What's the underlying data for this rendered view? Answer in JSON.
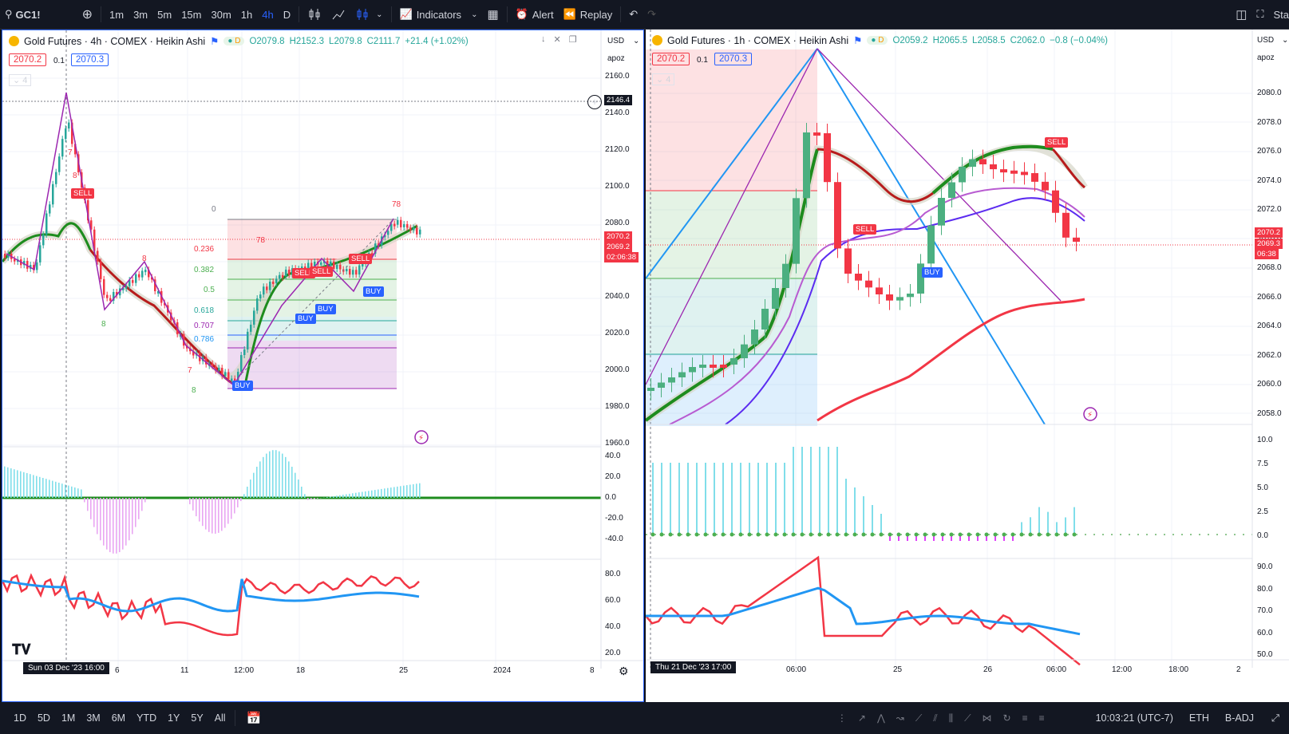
{
  "topbar": {
    "symbol": "GC1!",
    "intervals": [
      "1m",
      "3m",
      "5m",
      "15m",
      "30m",
      "1h",
      "4h",
      "D"
    ],
    "active_interval": "4h",
    "indicators_label": "Indicators",
    "alert_label": "Alert",
    "replay_label": "Replay",
    "right_text": "Sta"
  },
  "left_chart": {
    "title": "Gold Futures · 4h · COMEX · Heikin Ashi",
    "source": "D",
    "ohlc": {
      "o": "O2079.8",
      "h": "H2152.3",
      "l": "L2079.8",
      "c": "C2111.7",
      "chg": "+21.4 (+1.02%)"
    },
    "bid": "2070.2",
    "spread": "0.1",
    "ask": "2070.3",
    "layers": "4",
    "currency": "USD",
    "scale_mode": "apoz",
    "price_axis": [
      "2160.0",
      "2140.0",
      "2120.0",
      "2100.0",
      "2080.0",
      "2060.0",
      "2040.0",
      "2020.0",
      "2000.0",
      "1980.0",
      "1960.0"
    ],
    "crosshair_price": "2146.4",
    "last_price": "2070.2",
    "last_price2": "2069.2",
    "countdown": "02:06:38",
    "fib_levels": [
      "0",
      "0.236",
      "0.382",
      "0.5",
      "0.618",
      "0.707",
      "0.786"
    ],
    "macd_axis": [
      "40.0",
      "20.0",
      "0.0",
      "-20.0",
      "-40.0"
    ],
    "rsi_axis": [
      "80.0",
      "60.0",
      "40.0",
      "20.0"
    ],
    "time_axis": [
      "6",
      "11",
      "12:00",
      "18",
      "25",
      "2024",
      "8"
    ],
    "cursor_time": "Sun 03 Dec '23   16:00",
    "signals": [
      "SELL",
      "SELL",
      "SELL",
      "SELL",
      "BUY",
      "BUY",
      "BUY",
      "BUY"
    ],
    "counts": [
      "7",
      "8",
      "8",
      "8",
      "7",
      "8",
      "78",
      "78"
    ]
  },
  "right_chart": {
    "title": "Gold Futures · 1h · COMEX · Heikin Ashi",
    "source": "D",
    "ohlc": {
      "o": "O2059.2",
      "h": "H2065.5",
      "l": "L2058.5",
      "c": "C2062.0",
      "chg": "−0.8 (−0.04%)"
    },
    "bid": "2070.2",
    "spread": "0.1",
    "ask": "2070.3",
    "layers": "4",
    "currency": "USD",
    "scale_mode": "apoz",
    "price_axis": [
      "2080.0",
      "2078.0",
      "2076.0",
      "2074.0",
      "2072.0",
      "2070.0",
      "2068.0",
      "2066.0",
      "2064.0",
      "2062.0",
      "2060.0",
      "2058.0"
    ],
    "last_price": "2070.2",
    "last_price2": "2069.3",
    "countdown": "06:38",
    "hist_axis": [
      "10.0",
      "7.5",
      "5.0",
      "2.5",
      "0.0"
    ],
    "rsi_axis": [
      "90.0",
      "80.0",
      "70.0",
      "60.0",
      "50.0"
    ],
    "time_axis": [
      "06:00",
      "25",
      "26",
      "06:00",
      "12:00",
      "18:00",
      "2"
    ],
    "cursor_time": "Thu 21 Dec '23   17:00",
    "signals": [
      "SELL",
      "SELL",
      "BUY"
    ]
  },
  "bottombar": {
    "ranges": [
      "1D",
      "5D",
      "1M",
      "3M",
      "6M",
      "YTD",
      "1Y",
      "5Y",
      "All"
    ],
    "clock": "10:03:21 (UTC-7)",
    "session": "ETH",
    "adj": "B-ADJ"
  },
  "colors": {
    "bull": "#26a69a",
    "bear": "#f23645",
    "ma_green": "#1e8c1e",
    "ma_red": "#b71c1c",
    "accent": "#2962ff",
    "purple": "#9c27b0",
    "blue_line": "#2196f3"
  }
}
